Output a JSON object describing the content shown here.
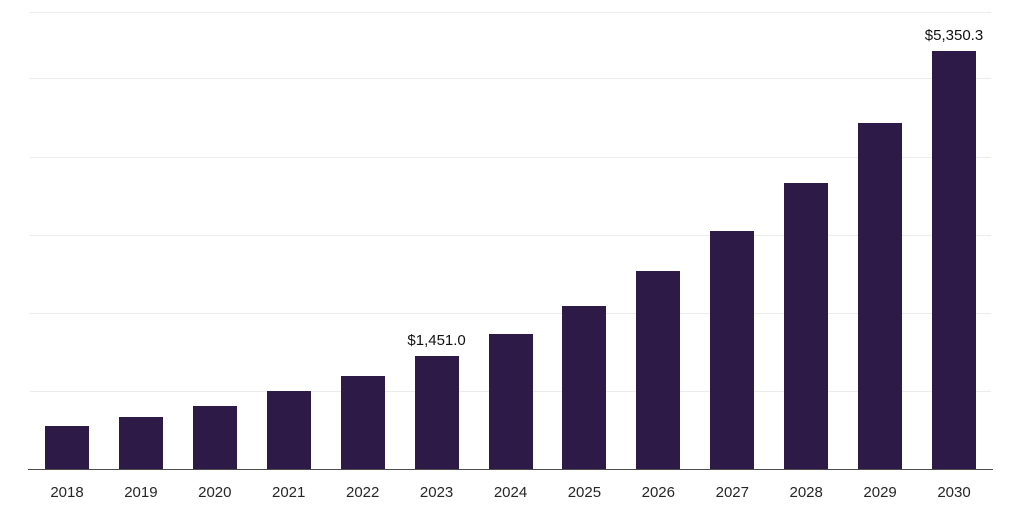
{
  "chart_data": {
    "type": "bar",
    "title": "",
    "xlabel": "",
    "ylabel": "",
    "categories": [
      "2018",
      "2019",
      "2020",
      "2021",
      "2022",
      "2023",
      "2024",
      "2025",
      "2026",
      "2027",
      "2028",
      "2029",
      "2030"
    ],
    "values": [
      550,
      665,
      810,
      1000,
      1190,
      1451.0,
      1730,
      2090,
      2535,
      3050,
      3660,
      4430,
      5350.3
    ],
    "annotations": [
      {
        "category": "2023",
        "text": "$1,451.0"
      },
      {
        "category": "2030",
        "text": "$5,350.3"
      }
    ],
    "ylim": [
      0,
      5850
    ],
    "gridlines": [
      1000,
      2000,
      3000,
      4000,
      5000
    ],
    "grid": "horizontal",
    "legend": "none",
    "bar_color": "#2E1A47",
    "gridline_color": "#ececec",
    "axis_line_color": "#4d4d4d",
    "tick_color": "#262626",
    "value_label_color": "#111111"
  }
}
